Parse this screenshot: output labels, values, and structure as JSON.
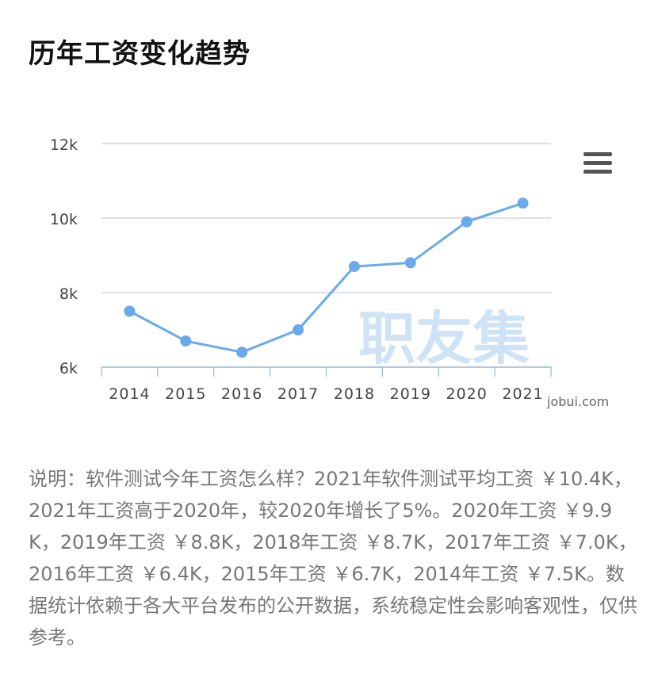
{
  "page": {
    "title": "历年工资变化趋势",
    "description": "说明：软件测试今年工资怎么样？2021年软件测试平均工资 ￥10.4K，2021年工资高于2020年，较2020年增长了5%。2020年工资 ￥9.9K，2019年工资 ￥8.8K，2018年工资 ￥8.7K，2017年工资 ￥7.0K，2016年工资 ￥6.4K，2015年工资 ￥6.7K，2014年工资 ￥7.5K。数据统计依赖于各大平台发布的公开数据，系统稳定性会影响客观性，仅供参考。"
  },
  "watermark": {
    "main": "职友集",
    "site": "jobui.com"
  },
  "menu_icon": "hamburger-menu-icon",
  "colors": {
    "line": "#6aaaea",
    "grid": "#c9d0d8",
    "watermark": "#cfe3f6"
  },
  "chart_data": {
    "type": "line",
    "categories": [
      "2014",
      "2015",
      "2016",
      "2017",
      "2018",
      "2019",
      "2020",
      "2021"
    ],
    "series": [
      {
        "values": [
          7.5,
          6.7,
          6.4,
          7.0,
          8.7,
          8.8,
          9.9,
          10.4
        ]
      }
    ],
    "ylim": [
      6,
      12
    ],
    "yticks": [
      6,
      8,
      10,
      12
    ],
    "ytick_labels": [
      "6k",
      "8k",
      "10k",
      "12k"
    ],
    "grid": true
  }
}
